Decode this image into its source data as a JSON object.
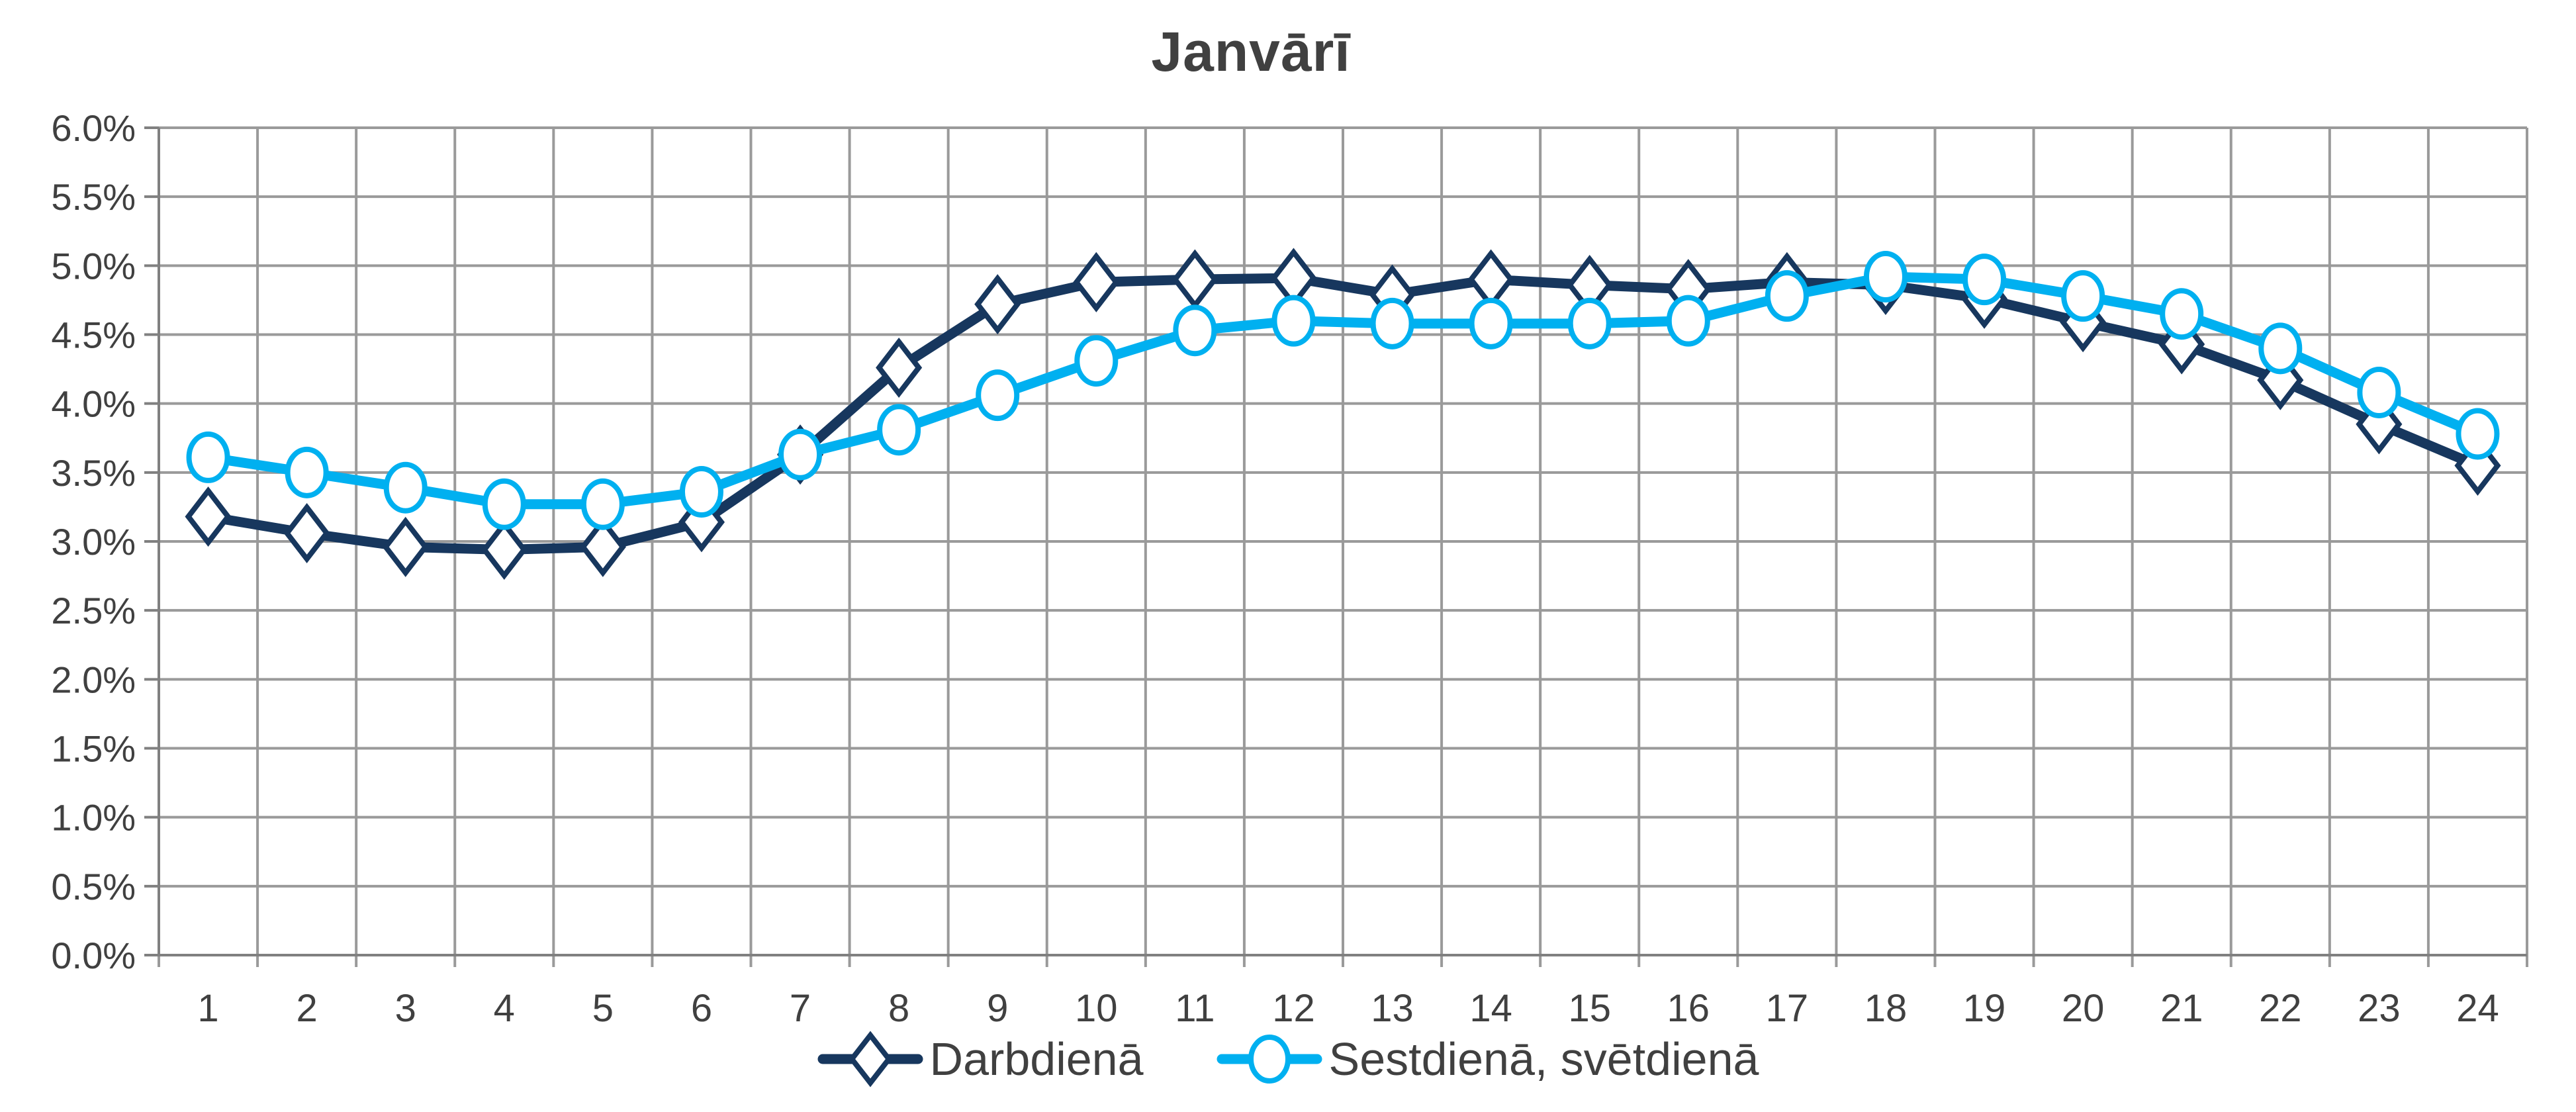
{
  "chart_data": {
    "type": "line",
    "title": "Janvārī",
    "categories": [
      "1",
      "2",
      "3",
      "4",
      "5",
      "6",
      "7",
      "8",
      "9",
      "10",
      "11",
      "12",
      "13",
      "14",
      "15",
      "16",
      "17",
      "18",
      "19",
      "20",
      "21",
      "22",
      "23",
      "24"
    ],
    "series": [
      {
        "name": "Darbdienā",
        "color": "#17375E",
        "marker": "diamond",
        "values": [
          3.18,
          3.06,
          2.96,
          2.94,
          2.96,
          3.14,
          3.63,
          4.26,
          4.72,
          4.88,
          4.9,
          4.91,
          4.79,
          4.9,
          4.86,
          4.83,
          4.88,
          4.86,
          4.76,
          4.59,
          4.43,
          4.17,
          3.85,
          3.55
        ]
      },
      {
        "name": "Sestdienā, svētdienā",
        "color": "#00B0F0",
        "marker": "circle",
        "values": [
          3.61,
          3.5,
          3.39,
          3.27,
          3.27,
          3.36,
          3.63,
          3.81,
          4.06,
          4.31,
          4.53,
          4.6,
          4.58,
          4.58,
          4.58,
          4.6,
          4.78,
          4.92,
          4.9,
          4.78,
          4.65,
          4.4,
          4.08,
          3.78
        ]
      }
    ],
    "y_axis": {
      "min": 0,
      "max": 6,
      "step": 0.5,
      "tick_suffix": "%",
      "decimals": 1
    },
    "xlabel": "",
    "ylabel": "",
    "grid": true,
    "legend_position": "bottom",
    "colors": {
      "grid_line": "#9A9A9A",
      "axis_line": "#808080",
      "text": "#404040",
      "background": "#FFFFFF",
      "marker_fill": "#FFFFFF"
    }
  }
}
